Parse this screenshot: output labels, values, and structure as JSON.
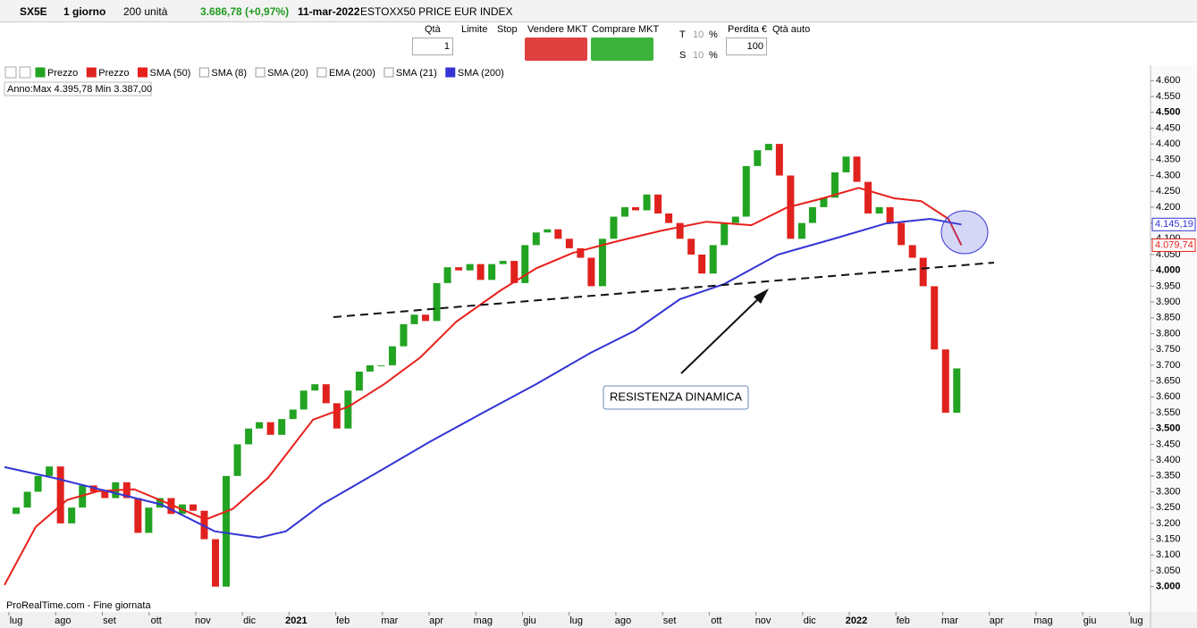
{
  "toolbar": {
    "symbol": "SX5E",
    "timeframe": "1 giorno",
    "units": "200 unità",
    "price": "3.686,78 (+0,97%)",
    "date": "11-mar-2022",
    "name": "ESTOXX50 PRICE EUR INDEX"
  },
  "order_panel": {
    "qty_label": "Qtà",
    "qty": "1",
    "limit": "Limite",
    "stop": "Stop",
    "sell": "Vendere MKT",
    "buy": "Comprare MKT",
    "t": "T",
    "t_value": "10",
    "t_unit": "%",
    "s": "S",
    "s_value": "10",
    "s_unit": "%",
    "loss": "Perdita €",
    "loss_value": "100",
    "auto_qty": "Qtà auto"
  },
  "chart_data": {
    "type": "candlestick",
    "info": "Anno:Max 4.395,78 Min 3.387,00",
    "footer": "ProRealTime.com - Fine giornata",
    "annotation": "RESISTENZA DINAMICA",
    "xlim": [
      -0.25,
      24.3
    ],
    "xticks": [
      {
        "value": 0,
        "label": "lug"
      },
      {
        "value": 1,
        "label": "ago"
      },
      {
        "value": 2,
        "label": "set"
      },
      {
        "value": 3,
        "label": "ott"
      },
      {
        "value": 4,
        "label": "nov"
      },
      {
        "value": 5,
        "label": "dic"
      },
      {
        "value": 6,
        "label": "2021"
      },
      {
        "value": 7,
        "label": "feb"
      },
      {
        "value": 8,
        "label": "mar"
      },
      {
        "value": 9,
        "label": "apr"
      },
      {
        "value": 10,
        "label": "mag"
      },
      {
        "value": 11,
        "label": "giu"
      },
      {
        "value": 12,
        "label": "lug"
      },
      {
        "value": 13,
        "label": "ago"
      },
      {
        "value": 14,
        "label": "set"
      },
      {
        "value": 15,
        "label": "ott"
      },
      {
        "value": 16,
        "label": "nov"
      },
      {
        "value": 17,
        "label": "dic"
      },
      {
        "value": 18,
        "label": "2022"
      },
      {
        "value": 19,
        "label": "feb"
      },
      {
        "value": 20,
        "label": "mar"
      },
      {
        "value": 21,
        "label": "apr"
      },
      {
        "value": 22,
        "label": "mag"
      },
      {
        "value": 23,
        "label": "giu"
      },
      {
        "value": 24,
        "label": "lug"
      }
    ],
    "ylim": [
      2920,
      4615
    ],
    "yticks": [
      {
        "value": 3000,
        "label": "3.000"
      },
      {
        "value": 3050,
        "label": "3.050"
      },
      {
        "value": 3100,
        "label": "3.100"
      },
      {
        "value": 3150,
        "label": "3.150"
      },
      {
        "value": 3200,
        "label": "3.200"
      },
      {
        "value": 3250,
        "label": "3.250"
      },
      {
        "value": 3300,
        "label": "3.300"
      },
      {
        "value": 3350,
        "label": "3.350"
      },
      {
        "value": 3400,
        "label": "3.400"
      },
      {
        "value": 3450,
        "label": "3.450"
      },
      {
        "value": 3500,
        "label": "3.500"
      },
      {
        "value": 3550,
        "label": "3.550"
      },
      {
        "value": 3600,
        "label": "3.600"
      },
      {
        "value": 3650,
        "label": "3.650"
      },
      {
        "value": 3700,
        "label": "3.700"
      },
      {
        "value": 3750,
        "label": "3.750"
      },
      {
        "value": 3800,
        "label": "3.800"
      },
      {
        "value": 3850,
        "label": "3.850"
      },
      {
        "value": 3900,
        "label": "3.900"
      },
      {
        "value": 3950,
        "label": "3.950"
      },
      {
        "value": 4000,
        "label": "4.000"
      },
      {
        "value": 4050,
        "label": "4.050"
      },
      {
        "value": 4100,
        "label": "4.100"
      },
      {
        "value": 4150,
        "label": "4.150"
      },
      {
        "value": 4200,
        "label": "4.200"
      },
      {
        "value": 4250,
        "label": "4.250"
      },
      {
        "value": 4300,
        "label": "4.300"
      },
      {
        "value": 4350,
        "label": "4.350"
      },
      {
        "value": 4400,
        "label": "4.400"
      },
      {
        "value": 4450,
        "label": "4.450"
      },
      {
        "value": 4500,
        "label": "4.500"
      },
      {
        "value": 4550,
        "label": "4.550"
      },
      {
        "value": 4600,
        "label": "4.600"
      }
    ],
    "candles": {
      "names": [
        "Prezzo",
        "Prezzo"
      ],
      "up_color": "#22a322",
      "down_color": "#e0221e",
      "x": [
        0,
        0.24,
        0.47,
        0.71,
        0.95,
        1.19,
        1.42,
        1.66,
        1.9,
        2.13,
        2.37,
        2.61,
        2.84,
        3.08,
        3.32,
        3.56,
        3.79,
        4.03,
        4.27,
        4.5,
        4.74,
        4.98,
        5.21,
        5.45,
        5.69,
        5.93,
        6.16,
        6.4,
        6.64,
        6.87,
        7.11,
        7.35,
        7.58,
        7.82,
        8.06,
        8.3,
        8.53,
        8.77,
        9.01,
        9.24,
        9.48,
        9.72,
        9.95,
        10.19,
        10.43,
        10.67,
        10.9,
        11.14,
        11.38,
        11.61,
        11.85,
        12.09,
        12.32,
        12.56,
        12.8,
        13.04,
        13.27,
        13.51,
        13.75,
        13.98,
        14.22,
        14.46,
        14.69,
        14.93,
        15.17,
        15.41,
        15.64,
        15.88,
        16.12,
        16.35,
        16.59,
        16.83,
        17.06,
        17.3,
        17.54,
        17.78,
        18.01,
        18.25,
        18.49,
        18.72,
        18.96,
        19.2,
        19.43,
        19.67,
        19.91,
        20.15
      ],
      "open": [
        3230,
        3250,
        3300,
        3350,
        3380,
        3200,
        3250,
        3320,
        3300,
        3280,
        3330,
        3280,
        3170,
        3250,
        3280,
        3230,
        3260,
        3240,
        3150,
        3000,
        3350,
        3450,
        3500,
        3520,
        3480,
        3530,
        3560,
        3620,
        3640,
        3580,
        3500,
        3620,
        3680,
        3700,
        3700,
        3760,
        3830,
        3860,
        3840,
        3960,
        4010,
        4000,
        4020,
        3970,
        4020,
        4030,
        3960,
        4080,
        4120,
        4130,
        4100,
        4070,
        4040,
        3950,
        4100,
        4170,
        4200,
        4190,
        4240,
        4180,
        4150,
        4100,
        4050,
        3990,
        4080,
        4150,
        4170,
        4330,
        4380,
        4400,
        4300,
        4100,
        4150,
        4200,
        4230,
        4310,
        4360,
        4280,
        4180,
        4200,
        4150,
        4080,
        4040,
        3950,
        3750,
        3550
      ],
      "close": [
        3250,
        3300,
        3350,
        3380,
        3200,
        3250,
        3320,
        3300,
        3280,
        3330,
        3280,
        3170,
        3250,
        3280,
        3230,
        3260,
        3240,
        3150,
        3000,
        3350,
        3450,
        3500,
        3520,
        3480,
        3530,
        3560,
        3620,
        3640,
        3580,
        3500,
        3620,
        3680,
        3700,
        3700,
        3760,
        3830,
        3860,
        3840,
        3960,
        4010,
        4000,
        4020,
        3970,
        4020,
        4030,
        3960,
        4080,
        4120,
        4130,
        4100,
        4070,
        4040,
        3950,
        4100,
        4170,
        4200,
        4190,
        4240,
        4180,
        4150,
        4100,
        4050,
        3990,
        4080,
        4150,
        4170,
        4330,
        4380,
        4400,
        4300,
        4100,
        4150,
        4200,
        4230,
        4310,
        4360,
        4280,
        4180,
        4200,
        4150,
        4080,
        4040,
        3950,
        3750,
        3550,
        3690
      ]
    },
    "series": [
      {
        "name": "SMA (50)",
        "color": "#e8201c",
        "x": [
          -0.25,
          0.42,
          1.09,
          1.76,
          2.53,
          3.3,
          4.06,
          4.64,
          5.4,
          6.36,
          7.13,
          7.89,
          8.66,
          9.43,
          10.38,
          11.15,
          11.92,
          12.87,
          13.83,
          14.79,
          15.75,
          16.51,
          17.28,
          18.05,
          18.81,
          19.39,
          19.97,
          20.25
        ],
        "values": [
          3005,
          3189,
          3274,
          3302,
          3308,
          3260,
          3212,
          3246,
          3344,
          3528,
          3570,
          3641,
          3725,
          3838,
          3937,
          4007,
          4055,
          4092,
          4126,
          4154,
          4143,
          4199,
          4228,
          4261,
          4228,
          4219,
          4163,
          4079.74
        ]
      },
      {
        "name": "SMA (200)",
        "color": "#3434d6",
        "x": [
          -0.25,
          0.8,
          1.95,
          3.1,
          4.25,
          5.2,
          5.78,
          6.55,
          7.7,
          8.85,
          10,
          11.15,
          12.3,
          13.26,
          14.22,
          15.17,
          16.32,
          17.47,
          18.62,
          19.58,
          20.25
        ],
        "values": [
          3378,
          3344,
          3302,
          3260,
          3175,
          3155,
          3175,
          3260,
          3358,
          3457,
          3550,
          3641,
          3739,
          3810,
          3909,
          3957,
          4050,
          4098,
          4148,
          4163,
          4145.19
        ]
      }
    ],
    "legend_unchecked": [
      "SMA (8)",
      "SMA (20)",
      "EMA (200)",
      "SMA (21)"
    ],
    "price_tags": [
      {
        "value": 4145.19,
        "label": "4.145,19",
        "color": "#3434d6"
      },
      {
        "value": 4079.74,
        "label": "4.079,74",
        "color": "#e8201c"
      }
    ]
  }
}
